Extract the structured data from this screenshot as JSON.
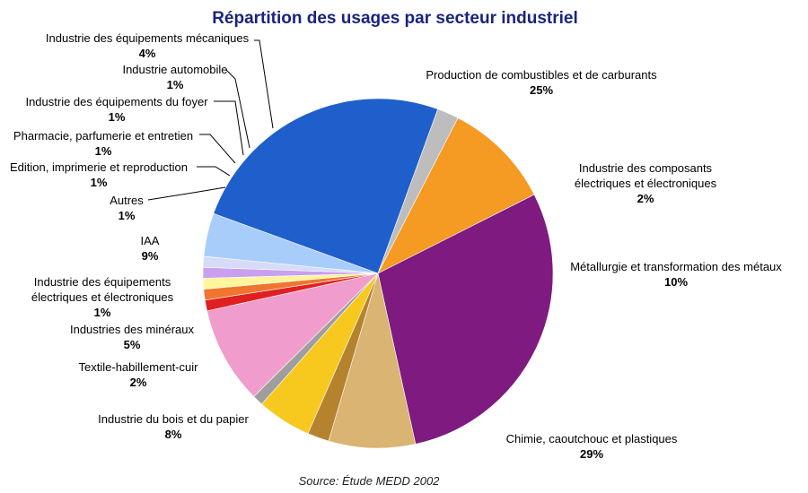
{
  "chart_data": {
    "type": "pie",
    "title": "Répartition des usages par secteur industriel",
    "source": "Source: Étude MEDD 2002",
    "slices": [
      {
        "name": "Production de combustibles et de carburants",
        "name_lines": [
          "Production de combustibles et de carburants"
        ],
        "label": "25%",
        "value": 25,
        "color": "#1f5fcc"
      },
      {
        "name": "Industrie des composants électriques et électroniques",
        "name_lines": [
          "Industrie des composants",
          "électriques et électroniques"
        ],
        "label": "2%",
        "value": 2,
        "color": "#bdbdbd"
      },
      {
        "name": "Métallurgie et transformation des métaux",
        "name_lines": [
          "Métallurgie et transformation des métaux"
        ],
        "label": "10%",
        "value": 10,
        "color": "#f59a23"
      },
      {
        "name": "Chimie, caoutchouc et plastiques",
        "name_lines": [
          "Chimie, caoutchouc et plastiques"
        ],
        "label": "29%",
        "value": 29,
        "color": "#7e1a80"
      },
      {
        "name": "Industrie du bois et du papier",
        "name_lines": [
          "Industrie du bois et du papier"
        ],
        "label": "8%",
        "value": 8,
        "color": "#d9b472"
      },
      {
        "name": "Textile-habillement-cuir",
        "name_lines": [
          "Textile-habillement-cuir"
        ],
        "label": "2%",
        "value": 2,
        "color": "#b5832e"
      },
      {
        "name": "Industries des minéraux",
        "name_lines": [
          "Industries des minéraux"
        ],
        "label": "5%",
        "value": 5,
        "color": "#f7c81e"
      },
      {
        "name": "Industrie des équipements électriques et électroniques",
        "name_lines": [
          "Industrie des équipements",
          "électriques et électroniques"
        ],
        "label": "1%",
        "value": 1,
        "color": "#9e9e9e"
      },
      {
        "name": "IAA",
        "name_lines": [
          "IAA"
        ],
        "label": "9%",
        "value": 9,
        "color": "#f09ccc"
      },
      {
        "name": "Autres",
        "name_lines": [
          "Autres"
        ],
        "label": "1%",
        "value": 1,
        "color": "#e02020"
      },
      {
        "name": "Edition, imprimerie et reproduction",
        "name_lines": [
          "Edition, imprimerie et reproduction"
        ],
        "label": "1%",
        "value": 1,
        "color": "#f0752e"
      },
      {
        "name": "Pharmacie, parfumerie et entretien",
        "name_lines": [
          "Pharmacie, parfumerie et entretien"
        ],
        "label": "1%",
        "value": 1,
        "color": "#fff59a"
      },
      {
        "name": "Industrie des équipements du foyer",
        "name_lines": [
          "Industrie des équipements du foyer"
        ],
        "label": "1%",
        "value": 1,
        "color": "#c9a0f0"
      },
      {
        "name": "Industrie automobile",
        "name_lines": [
          "Industrie automobile"
        ],
        "label": "1%",
        "value": 1,
        "color": "#d6dbfa"
      },
      {
        "name": "Industrie des équipements mécaniques",
        "name_lines": [
          "Industrie des équipements mécaniques"
        ],
        "label": "4%",
        "value": 4,
        "color": "#a9cdfb"
      }
    ]
  }
}
